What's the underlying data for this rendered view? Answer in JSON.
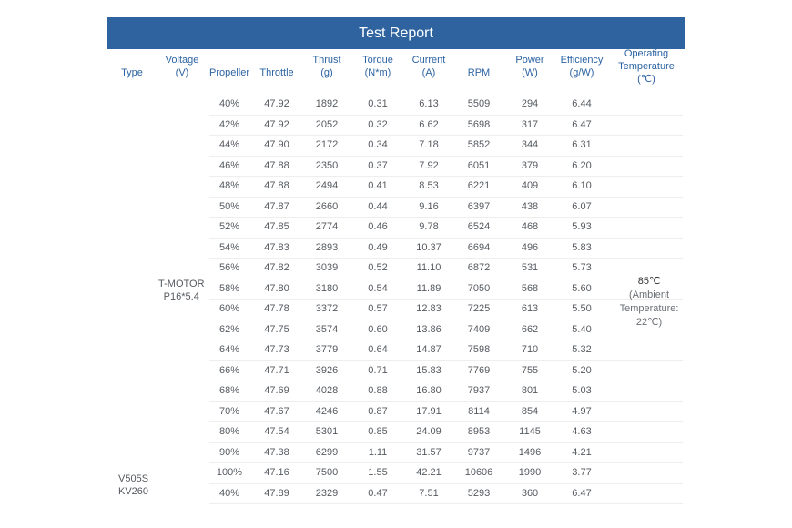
{
  "title": "Test Report",
  "headers": {
    "type": [
      "Type"
    ],
    "voltage": [
      "Voltage",
      "(V)"
    ],
    "propeller": [
      "Propeller"
    ],
    "throttle": [
      "Throttle"
    ],
    "thrust": [
      "Thrust",
      "(g)"
    ],
    "torque": [
      "Torque",
      "(N*m)"
    ],
    "current": [
      "Current",
      "(A)"
    ],
    "rpm": [
      "RPM"
    ],
    "power": [
      "Power",
      "(W)"
    ],
    "efficiency": [
      "Efficiency",
      "(g/W)"
    ],
    "temperature": [
      "Operating",
      "Temperature",
      "(℃)"
    ]
  },
  "type_label": [
    "V505S",
    "KV260"
  ],
  "propeller_label": [
    "T-MOTOR",
    "P16*5.4"
  ],
  "temperature_value": {
    "main": "85℃",
    "note": [
      "(Ambient",
      "Temperature:",
      "22℃)"
    ]
  },
  "rows": [
    [
      "40%",
      "47.92",
      "1892",
      "0.31",
      "6.13",
      "5509",
      "294",
      "6.44"
    ],
    [
      "42%",
      "47.92",
      "2052",
      "0.32",
      "6.62",
      "5698",
      "317",
      "6.47"
    ],
    [
      "44%",
      "47.90",
      "2172",
      "0.34",
      "7.18",
      "5852",
      "344",
      "6.31"
    ],
    [
      "46%",
      "47.88",
      "2350",
      "0.37",
      "7.92",
      "6051",
      "379",
      "6.20"
    ],
    [
      "48%",
      "47.88",
      "2494",
      "0.41",
      "8.53",
      "6221",
      "409",
      "6.10"
    ],
    [
      "50%",
      "47.87",
      "2660",
      "0.44",
      "9.16",
      "6397",
      "438",
      "6.07"
    ],
    [
      "52%",
      "47.85",
      "2774",
      "0.46",
      "9.78",
      "6524",
      "468",
      "5.93"
    ],
    [
      "54%",
      "47.83",
      "2893",
      "0.49",
      "10.37",
      "6694",
      "496",
      "5.83"
    ],
    [
      "56%",
      "47.82",
      "3039",
      "0.52",
      "11.10",
      "6872",
      "531",
      "5.73"
    ],
    [
      "58%",
      "47.80",
      "3180",
      "0.54",
      "11.89",
      "7050",
      "568",
      "5.60"
    ],
    [
      "60%",
      "47.78",
      "3372",
      "0.57",
      "12.83",
      "7225",
      "613",
      "5.50"
    ],
    [
      "62%",
      "47.75",
      "3574",
      "0.60",
      "13.86",
      "7409",
      "662",
      "5.40"
    ],
    [
      "64%",
      "47.73",
      "3779",
      "0.64",
      "14.87",
      "7598",
      "710",
      "5.32"
    ],
    [
      "66%",
      "47.71",
      "3926",
      "0.71",
      "15.83",
      "7769",
      "755",
      "5.20"
    ],
    [
      "68%",
      "47.69",
      "4028",
      "0.88",
      "16.80",
      "7937",
      "801",
      "5.03"
    ],
    [
      "70%",
      "47.67",
      "4246",
      "0.87",
      "17.91",
      "8114",
      "854",
      "4.97"
    ],
    [
      "80%",
      "47.54",
      "5301",
      "0.85",
      "24.09",
      "8953",
      "1145",
      "4.63"
    ],
    [
      "90%",
      "47.38",
      "6299",
      "1.11",
      "31.57",
      "9737",
      "1496",
      "4.21"
    ],
    [
      "100%",
      "47.16",
      "7500",
      "1.55",
      "42.21",
      "10606",
      "1990",
      "3.77"
    ],
    [
      "40%",
      "47.89",
      "2329",
      "0.47",
      "7.51",
      "5293",
      "360",
      "6.47"
    ]
  ]
}
